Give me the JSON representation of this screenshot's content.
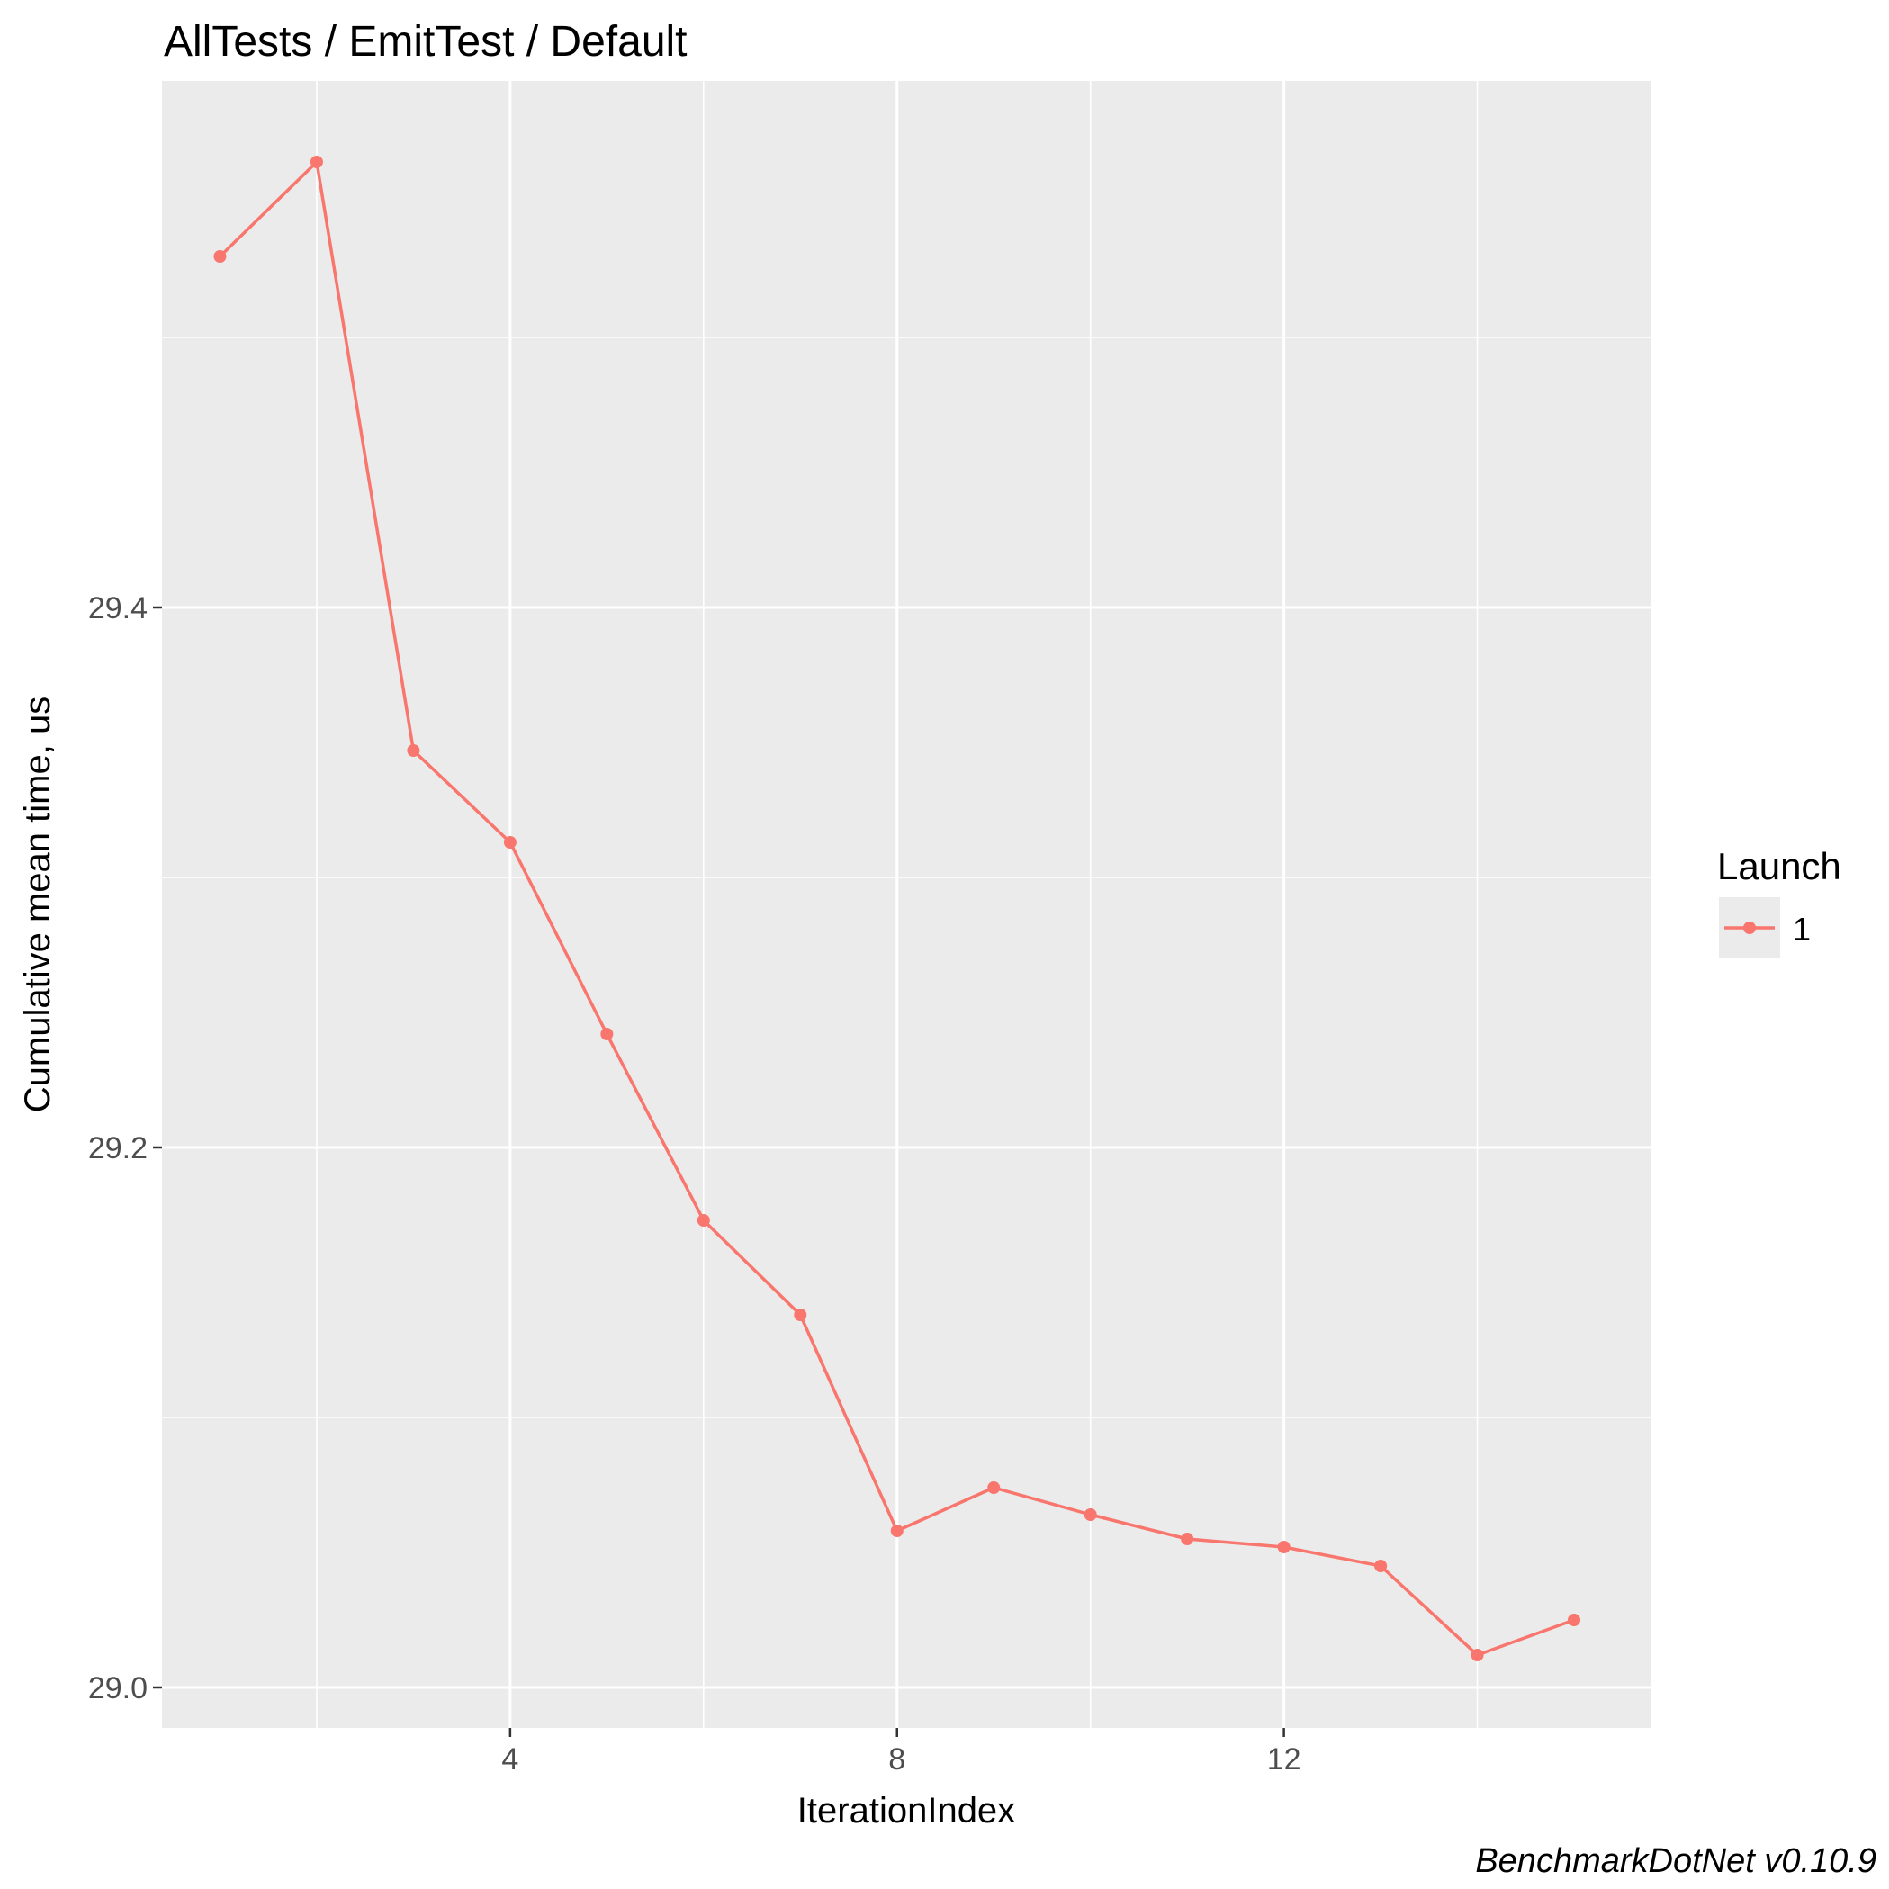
{
  "chart_data": {
    "type": "line",
    "title": "AllTests / EmitTest / Default",
    "xlabel": "IterationIndex",
    "ylabel": "Cumulative mean time, us",
    "caption": "BenchmarkDotNet v0.10.9",
    "xlim": [
      0.4,
      15.8
    ],
    "ylim": [
      28.985,
      29.595
    ],
    "x_ticks": [
      4,
      8,
      12
    ],
    "x_tick_labels": [
      "4",
      "8",
      "12"
    ],
    "y_ticks": [
      29.0,
      29.2,
      29.4
    ],
    "y_tick_labels": [
      "29.0",
      "29.2",
      "29.4"
    ],
    "grid": true,
    "legend": {
      "title": "Launch",
      "position": "right",
      "entries": [
        "1"
      ]
    },
    "series": [
      {
        "name": "1",
        "color": "#F8766D",
        "x": [
          1,
          2,
          3,
          4,
          5,
          6,
          7,
          8,
          9,
          10,
          11,
          12,
          13,
          14,
          15
        ],
        "y": [
          29.53,
          29.565,
          29.347,
          29.313,
          29.242,
          29.173,
          29.138,
          29.058,
          29.074,
          29.064,
          29.055,
          29.052,
          29.045,
          29.012,
          29.025
        ]
      }
    ]
  }
}
